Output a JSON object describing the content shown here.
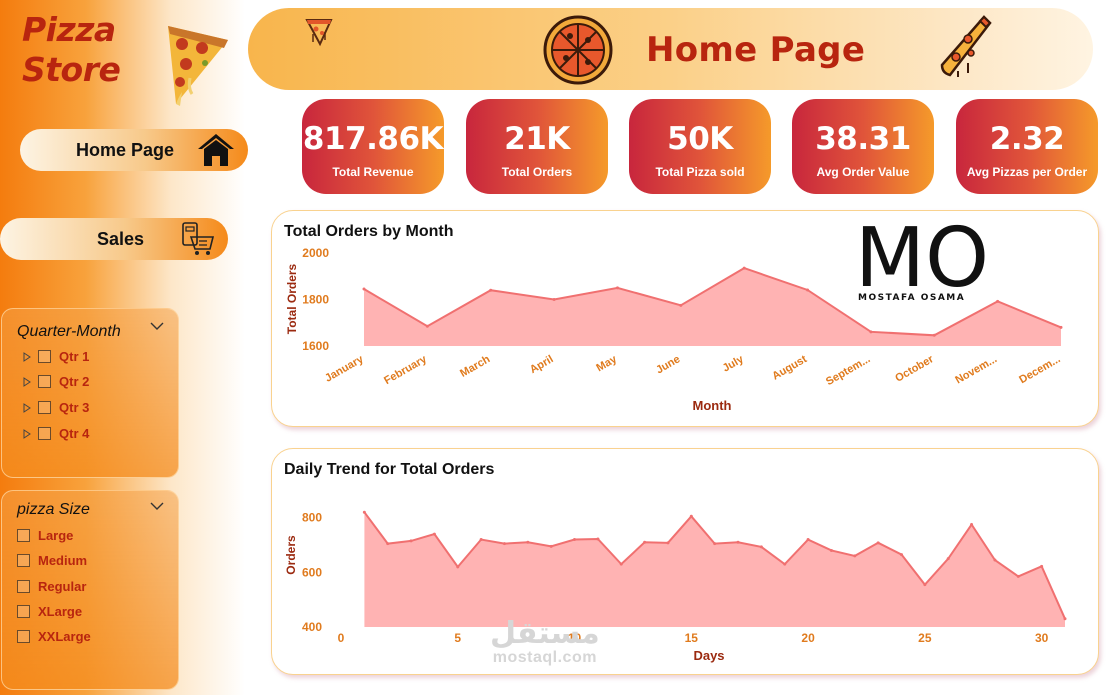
{
  "brand": {
    "line1": "Pizza",
    "line2": "Store"
  },
  "nav": {
    "home_label": "Home Page",
    "sales_label": "Sales"
  },
  "header": {
    "title": "Home Page"
  },
  "kpis": [
    {
      "value": "817.86K",
      "label": "Total Revenue"
    },
    {
      "value": "21K",
      "label": "Total Orders"
    },
    {
      "value": "50K",
      "label": "Total Pizza sold"
    },
    {
      "value": "38.31",
      "label": "Avg Order Value"
    },
    {
      "value": "2.32",
      "label": "Avg Pizzas per Order"
    }
  ],
  "slicers": {
    "quarter": {
      "title": "Quarter-Month",
      "options": [
        "Qtr 1",
        "Qtr 2",
        "Qtr 3",
        "Qtr 4"
      ]
    },
    "size": {
      "title": "pizza Size",
      "options": [
        "Large",
        "Medium",
        "Regular",
        "XLarge",
        "XXLarge"
      ]
    }
  },
  "logo": {
    "letters": "MO",
    "name": "MOSTAFA OSAMA"
  },
  "watermark": {
    "arabic": "مستقل",
    "latin": "mostaql.com"
  },
  "colors": {
    "accent": "#b8250f",
    "area_fill": "#ffb3b3",
    "area_line": "#f07070",
    "axis_label": "#9b2a10",
    "tick_label": "#e07b1e"
  },
  "chart_data": [
    {
      "type": "area",
      "title": "Total Orders by Month",
      "xlabel": "Month",
      "ylabel": "Total Orders",
      "categories": [
        "January",
        "February",
        "March",
        "April",
        "May",
        "June",
        "July",
        "August",
        "Septem...",
        "October",
        "Novem...",
        "Decem..."
      ],
      "values": [
        1845,
        1685,
        1840,
        1800,
        1850,
        1775,
        1935,
        1841,
        1661,
        1646,
        1792,
        1680
      ],
      "ylim": [
        1600,
        2000
      ],
      "yticks": [
        1600,
        1800,
        2000
      ],
      "grid": false
    },
    {
      "type": "area",
      "title": "Daily Trend for Total Orders",
      "xlabel": "Days",
      "ylabel": "Orders",
      "x": [
        1,
        2,
        3,
        4,
        5,
        6,
        7,
        8,
        9,
        10,
        11,
        12,
        13,
        14,
        15,
        16,
        17,
        18,
        19,
        20,
        21,
        22,
        23,
        24,
        25,
        26,
        27,
        28,
        29,
        30,
        31
      ],
      "values": [
        820,
        705,
        715,
        740,
        620,
        720,
        705,
        710,
        695,
        720,
        722,
        630,
        710,
        708,
        805,
        705,
        710,
        693,
        630,
        720,
        680,
        660,
        708,
        665,
        555,
        650,
        775,
        645,
        585,
        622,
        430
      ],
      "ylim": [
        400,
        850
      ],
      "yticks": [
        400,
        600,
        800
      ],
      "xticks": [
        0,
        5,
        10,
        15,
        20,
        25,
        30
      ],
      "xlim": [
        0,
        31.3
      ],
      "grid": false
    }
  ]
}
